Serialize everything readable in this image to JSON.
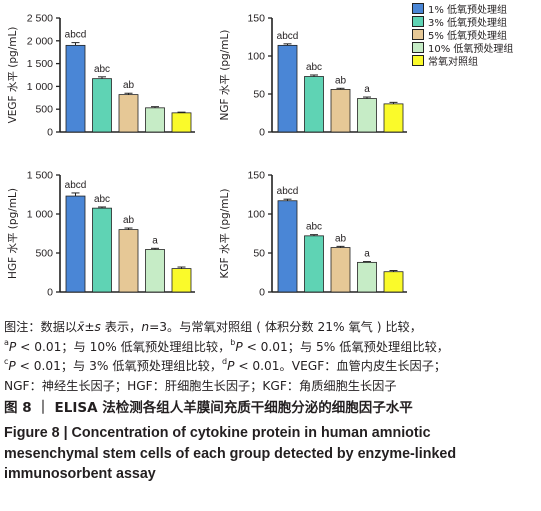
{
  "legend": [
    {
      "label": "1% 低氧预处理组",
      "color": "#4a86d6"
    },
    {
      "label": "3% 低氧预处理组",
      "color": "#5fd3b4"
    },
    {
      "label": "5% 低氧预处理组",
      "color": "#e6c896"
    },
    {
      "label": "10% 低氧预处理组",
      "color": "#c6ecc6"
    },
    {
      "label": "常氧对照组",
      "color": "#fafa2a"
    }
  ],
  "chart_data": [
    {
      "type": "bar",
      "ylabel": "VEGF 水平 (pg/mL)",
      "ylim": [
        0,
        2500
      ],
      "yticks": [
        "0",
        "500",
        "1 000",
        "1 500",
        "2 000",
        "2 500"
      ],
      "yticks_values": [
        0,
        500,
        1000,
        1500,
        2000,
        2500
      ],
      "series": [
        {
          "values": [
            1900,
            1170,
            820,
            530,
            420
          ],
          "errors": [
            60,
            40,
            30,
            25,
            15
          ]
        }
      ],
      "data_labels": [
        "abcd",
        "abc",
        "ab",
        "",
        ""
      ]
    },
    {
      "type": "bar",
      "ylabel": "NGF 水平 (pg/mL)",
      "ylim": [
        0,
        150
      ],
      "yticks": [
        "0",
        "50",
        "100",
        "150"
      ],
      "yticks_values": [
        0,
        50,
        100,
        150
      ],
      "series": [
        {
          "values": [
            114,
            73,
            56,
            44,
            37
          ],
          "errors": [
            2,
            2,
            1.5,
            2,
            2
          ]
        }
      ],
      "data_labels": [
        "abcd",
        "abc",
        "ab",
        "a",
        ""
      ]
    },
    {
      "type": "bar",
      "ylabel": "HGF 水平 (pg/mL)",
      "ylim": [
        0,
        1500
      ],
      "yticks": [
        "0",
        "500",
        "1 000",
        "1 500"
      ],
      "yticks_values": [
        0,
        500,
        1000,
        1500
      ],
      "series": [
        {
          "values": [
            1230,
            1075,
            800,
            545,
            300
          ],
          "errors": [
            40,
            15,
            20,
            15,
            20
          ]
        }
      ],
      "data_labels": [
        "abcd",
        "abc",
        "ab",
        "a",
        ""
      ]
    },
    {
      "type": "bar",
      "ylabel": "KGF 水平 (pg/mL)",
      "ylim": [
        0,
        150
      ],
      "yticks": [
        "0",
        "50",
        "100",
        "150"
      ],
      "yticks_values": [
        0,
        50,
        100,
        150
      ],
      "series": [
        {
          "values": [
            117,
            72,
            57,
            38,
            26
          ],
          "errors": [
            2,
            1.5,
            1.5,
            1,
            1.5
          ]
        }
      ],
      "data_labels": [
        "abcd",
        "abc",
        "ab",
        "a",
        ""
      ]
    }
  ],
  "note": {
    "l1a": "图注：数据以",
    "l1b": "x̄±s",
    "l1c": " 表示，",
    "l1d": "n",
    "l1e": "=3。与常氧对照组 ( 体积分数 21% 氧气 ) 比较，",
    "l2a_sup": "a",
    "l2a": "P",
    "l2b": " < 0.01；与 10% 低氧预处理组比较，",
    "l2c_sup": "b",
    "l2c": "P",
    "l2d": " < 0.01；与 5% 低氧预处理组比较，",
    "l3a_sup": "c",
    "l3a": "P",
    "l3b": " < 0.01；与 3% 低氧预处理组比较，",
    "l3c_sup": "d",
    "l3c": "P",
    "l3d": " < 0.01。VEGF：血管内皮生长因子；",
    "l4": "NGF：神经生长因子；HGF：肝细胞生长因子；KGF：角质细胞生长因子"
  },
  "figure": {
    "title_cn": "图 8  ｜  ELISA 法检测各组人羊膜间充质干细胞分泌的细胞因子水平",
    "title_en_1": "Figure 8  |  Concentration of cytokine protein in human amniotic",
    "title_en_2": "mesenchymal stem cells of each group detected by enzyme-linked",
    "title_en_3": "immunosorbent assay"
  }
}
